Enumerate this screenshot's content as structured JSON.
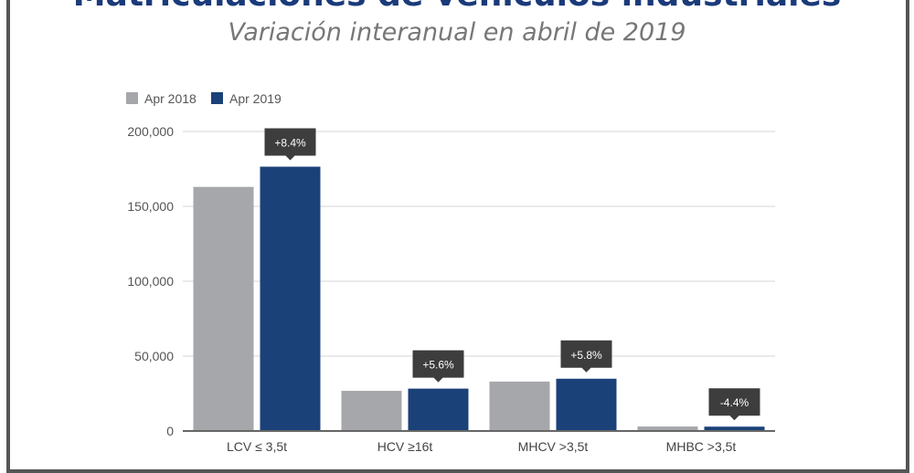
{
  "chart_data": {
    "type": "bar",
    "title": "Matriculaciones de vehículos industriales",
    "subtitle": "Variación interanual en abril de 2019",
    "categories": [
      "LCV ≤ 3,5t",
      "HCV ≥16t",
      "MHCV >3,5t",
      "MHBC >3,5t"
    ],
    "series": [
      {
        "name": "Apr 2018",
        "color": "#a6a7aa",
        "values": [
          163000,
          26800,
          33000,
          3000
        ]
      },
      {
        "name": "Apr 2019",
        "color": "#1b4179",
        "values": [
          176500,
          28300,
          34900,
          2900
        ]
      }
    ],
    "annotations": [
      "+8.4%",
      "+5.6%",
      "+5.8%",
      "-4.4%"
    ],
    "yticks": [
      0,
      50000,
      100000,
      150000,
      200000
    ],
    "ytick_labels": [
      "0",
      "50,000",
      "100,000",
      "150,000",
      "200,000"
    ],
    "ylim": [
      0,
      200000
    ],
    "grid": true,
    "legend": "top-left"
  }
}
